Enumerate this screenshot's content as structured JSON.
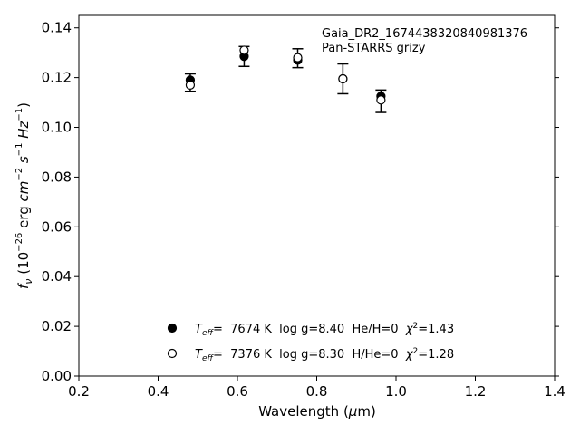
{
  "chart_data": {
    "type": "scatter",
    "title": "",
    "xlabel": "Wavelength (μm)",
    "ylabel": "f_ν (10^-26 erg cm^-2 s^-1 Hz^-1)",
    "xlim": [
      0.2,
      1.4
    ],
    "ylim": [
      0.0,
      0.145
    ],
    "xticks": [
      "0.2",
      "0.4",
      "0.6",
      "0.8",
      "1.0",
      "1.2",
      "1.4"
    ],
    "yticks": [
      "0.00",
      "0.02",
      "0.04",
      "0.06",
      "0.08",
      "0.10",
      "0.12",
      "0.14"
    ],
    "grid": false,
    "annotation": [
      "Gaia_DR2_1674438320840981376",
      "Pan-STARRS grizy"
    ],
    "observed": {
      "x": [
        0.481,
        0.617,
        0.752,
        0.866,
        0.962
      ],
      "y": [
        0.118,
        0.1285,
        0.1278,
        0.1195,
        0.1105
      ],
      "yerr": [
        0.0035,
        0.004,
        0.0038,
        0.006,
        0.0045
      ]
    },
    "series": [
      {
        "name": "T_eff=  7674 K  log g=8.40  He/H=0  χ²=1.43",
        "marker": "filled-circle",
        "x": [
          0.481,
          0.617,
          0.752,
          0.866,
          0.962
        ],
        "y": [
          0.119,
          0.1285,
          0.127,
          0.1195,
          0.1125
        ]
      },
      {
        "name": "T_eff=  7376 K  log g=8.30  H/He=0  χ²=1.28",
        "marker": "open-circle",
        "x": [
          0.481,
          0.617,
          0.752,
          0.866,
          0.962
        ],
        "y": [
          0.117,
          0.131,
          0.128,
          0.1195,
          0.111
        ]
      }
    ],
    "legend_position": "lower-center"
  }
}
